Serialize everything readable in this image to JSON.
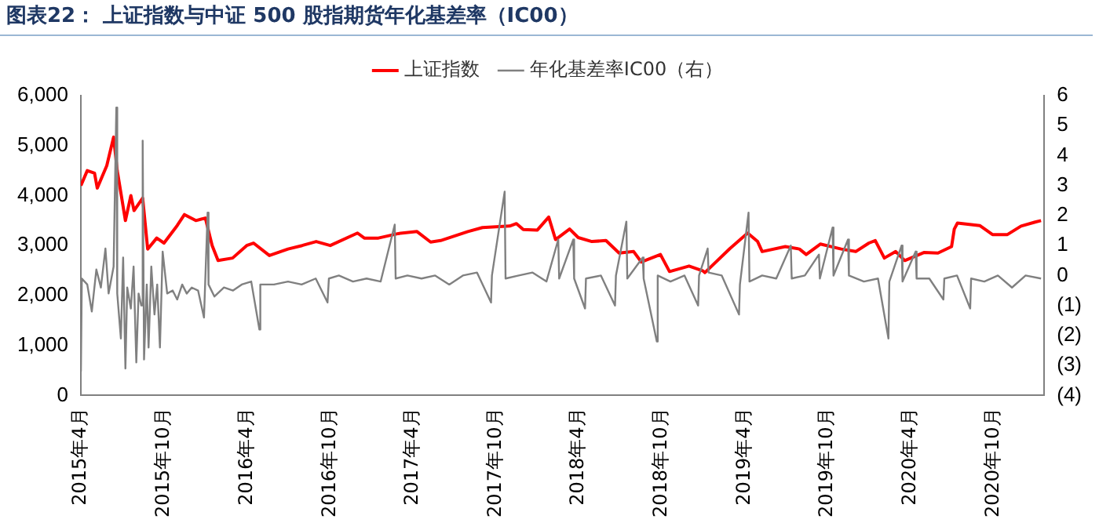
{
  "chart_data": {
    "type": "line",
    "title": "图表22：  上证指数与中证 500 股指期货年化基差率（IC00）",
    "legend": "top",
    "grid": false,
    "marker": "none",
    "xlim": [
      "2015-04-01",
      "2021-01-20"
    ],
    "xticks": [
      {
        "value": "2015-04",
        "label": "2015年4月"
      },
      {
        "value": "2015-10",
        "label": "2015年10月"
      },
      {
        "value": "2016-04",
        "label": "2016年4月"
      },
      {
        "value": "2016-10",
        "label": "2016年10月"
      },
      {
        "value": "2017-04",
        "label": "2017年4月"
      },
      {
        "value": "2017-10",
        "label": "2017年10月"
      },
      {
        "value": "2018-04",
        "label": "2018年4月"
      },
      {
        "value": "2018-10",
        "label": "2018年10月"
      },
      {
        "value": "2019-04",
        "label": "2019年4月"
      },
      {
        "value": "2019-10",
        "label": "2019年10月"
      },
      {
        "value": "2020-04",
        "label": "2020年4月"
      },
      {
        "value": "2020-10",
        "label": "2020年10月"
      }
    ],
    "ylim": [
      0,
      6000
    ],
    "yticks": [
      0,
      {
        "value": 1000,
        "label": "1,000"
      },
      {
        "value": 2000,
        "label": "2,000"
      },
      {
        "value": 3000,
        "label": "3,000"
      },
      {
        "value": 4000,
        "label": "4,000"
      },
      {
        "value": 5000,
        "label": "5,000"
      },
      {
        "value": 6000,
        "label": "6,000"
      }
    ],
    "y2lim": [
      -4,
      6
    ],
    "y2ticks": [
      {
        "value": -4,
        "label": "(4)"
      },
      {
        "value": -3,
        "label": "(3)"
      },
      {
        "value": -2,
        "label": "(2)"
      },
      {
        "value": -1,
        "label": "(1)"
      },
      0,
      1,
      2,
      3,
      4,
      5,
      6
    ],
    "series": [
      {
        "name": "上证指数",
        "color": "#ff0000",
        "x": [
          "2015-04-01",
          "2015-04-15",
          "2015-05-01",
          "2015-05-07",
          "2015-05-28",
          "2015-06-12",
          "2015-06-20",
          "2015-07-08",
          "2015-07-20",
          "2015-07-27",
          "2015-08-15",
          "2015-08-26",
          "2015-09-15",
          "2015-10-01",
          "2015-10-30",
          "2015-11-15",
          "2015-12-10",
          "2015-12-31",
          "2016-01-15",
          "2016-01-28",
          "2016-02-29",
          "2016-03-31",
          "2016-04-15",
          "2016-05-20",
          "2016-06-30",
          "2016-07-31",
          "2016-08-31",
          "2016-10-01",
          "2016-11-30",
          "2016-12-15",
          "2017-01-15",
          "2017-02-28",
          "2017-04-10",
          "2017-05-10",
          "2017-06-01",
          "2017-07-31",
          "2017-09-01",
          "2017-10-31",
          "2017-11-15",
          "2017-11-30",
          "2017-12-31",
          "2018-01-25",
          "2018-02-09",
          "2018-03-12",
          "2018-03-31",
          "2018-04-30",
          "2018-05-31",
          "2018-06-29",
          "2018-07-31",
          "2018-08-17",
          "2018-09-28",
          "2018-10-18",
          "2018-11-30",
          "2018-12-31",
          "2019-01-04",
          "2019-02-28",
          "2019-04-08",
          "2019-04-30",
          "2019-05-10",
          "2019-06-30",
          "2019-07-31",
          "2019-08-15",
          "2019-09-15",
          "2019-10-31",
          "2019-12-02",
          "2019-12-31",
          "2020-01-14",
          "2020-02-03",
          "2020-02-28",
          "2020-03-19",
          "2020-04-30",
          "2020-05-31",
          "2020-06-30",
          "2020-07-06",
          "2020-07-13",
          "2020-08-31",
          "2020-09-28",
          "2020-10-31",
          "2020-11-30",
          "2020-12-31",
          "2021-01-13"
        ],
        "values": [
          4200,
          4500,
          4450,
          4150,
          4600,
          5170,
          4500,
          3500,
          4000,
          3700,
          3950,
          2930,
          3150,
          3050,
          3400,
          3620,
          3500,
          3550,
          3000,
          2700,
          2750,
          3000,
          3050,
          2800,
          2930,
          3000,
          3080,
          3000,
          3250,
          3150,
          3150,
          3240,
          3280,
          3070,
          3100,
          3280,
          3360,
          3390,
          3440,
          3320,
          3310,
          3570,
          3120,
          3330,
          3160,
          3080,
          3100,
          2850,
          2880,
          2670,
          2820,
          2480,
          2590,
          2490,
          2460,
          2940,
          3250,
          3080,
          2880,
          2980,
          2930,
          2820,
          3030,
          2930,
          2880,
          3050,
          3100,
          2750,
          2880,
          2700,
          2860,
          2850,
          2980,
          3330,
          3450,
          3400,
          3220,
          3220,
          3390,
          3470,
          3500
        ]
      },
      {
        "name": "年化基差率IC00（右）",
        "color": "#808080",
        "axis": "y2",
        "x": [
          "2015-04-01",
          "2015-04-03",
          "2015-04-15",
          "2015-04-25",
          "2015-05-05",
          "2015-05-15",
          "2015-05-25",
          "2015-06-01",
          "2015-06-12",
          "2015-06-18",
          "2015-06-20",
          "2015-06-28",
          "2015-07-03",
          "2015-07-08",
          "2015-07-12",
          "2015-07-20",
          "2015-07-26",
          "2015-08-01",
          "2015-08-06",
          "2015-08-12",
          "2015-08-15",
          "2015-08-18",
          "2015-08-24",
          "2015-08-28",
          "2015-09-03",
          "2015-09-10",
          "2015-09-16",
          "2015-09-22",
          "2015-09-28",
          "2015-10-08",
          "2015-10-20",
          "2015-10-30",
          "2015-11-10",
          "2015-11-20",
          "2015-12-01",
          "2015-12-15",
          "2015-12-28",
          "2016-01-05",
          "2016-01-07",
          "2016-01-20",
          "2016-02-10",
          "2016-03-01",
          "2016-03-20",
          "2016-04-10",
          "2016-04-28",
          "2016-04-30",
          "2016-05-30",
          "2016-06-30",
          "2016-07-30",
          "2016-08-30",
          "2016-09-25",
          "2016-09-28",
          "2016-10-20",
          "2016-11-20",
          "2016-12-20",
          "2017-01-20",
          "2017-02-20",
          "2017-02-22",
          "2017-03-20",
          "2017-04-20",
          "2017-05-20",
          "2017-06-20",
          "2017-07-20",
          "2017-08-20",
          "2017-09-20",
          "2017-09-22",
          "2017-10-20",
          "2017-10-22",
          "2017-11-20",
          "2017-12-20",
          "2018-01-20",
          "2018-02-15",
          "2018-02-17",
          "2018-03-20",
          "2018-03-22",
          "2018-04-15",
          "2018-04-17",
          "2018-05-20",
          "2018-06-20",
          "2018-06-22",
          "2018-07-15",
          "2018-07-17",
          "2018-08-20",
          "2018-08-22",
          "2018-09-20",
          "2018-09-22",
          "2018-10-20",
          "2018-11-20",
          "2018-12-20",
          "2018-12-22",
          "2019-01-10",
          "2019-01-12",
          "2019-02-10",
          "2019-03-20",
          "2019-03-22",
          "2019-04-10",
          "2019-04-12",
          "2019-05-10",
          "2019-06-10",
          "2019-07-12",
          "2019-07-14",
          "2019-08-12",
          "2019-09-12",
          "2019-09-14",
          "2019-10-12",
          "2019-10-14",
          "2019-11-15",
          "2019-11-17",
          "2019-12-20",
          "2020-01-20",
          "2020-02-12",
          "2020-02-14",
          "2020-03-12",
          "2020-03-14",
          "2020-04-12",
          "2020-04-14",
          "2020-05-12",
          "2020-06-12",
          "2020-06-14",
          "2020-07-12",
          "2020-08-10",
          "2020-08-12",
          "2020-09-10",
          "2020-10-10",
          "2020-11-10",
          "2020-12-10",
          "2021-01-13"
        ],
        "values": [
          -3.2,
          -0.1,
          -0.3,
          -1.2,
          0.2,
          -0.4,
          0.9,
          -0.6,
          0.3,
          5.6,
          -0.6,
          -2.1,
          0.6,
          -3.1,
          -0.4,
          -1.1,
          0.3,
          -2.9,
          -0.6,
          -1.0,
          4.5,
          -2.8,
          -0.3,
          -2.4,
          0.3,
          -1.3,
          -0.3,
          -2.4,
          0.8,
          -0.6,
          -0.5,
          -0.8,
          -0.3,
          -0.6,
          -0.4,
          -0.5,
          -1.4,
          2.1,
          -0.3,
          -0.7,
          -0.4,
          -0.5,
          -0.3,
          -0.2,
          -1.8,
          -0.3,
          -0.3,
          -0.2,
          -0.3,
          -0.1,
          -0.9,
          -0.1,
          0.0,
          -0.2,
          -0.1,
          -0.2,
          1.7,
          -0.1,
          0.0,
          -0.1,
          0.0,
          -0.3,
          0.0,
          0.1,
          -0.9,
          0.0,
          2.8,
          -0.1,
          0.0,
          0.1,
          -0.2,
          1.2,
          -0.1,
          1.2,
          -0.1,
          -1.1,
          -0.1,
          0.0,
          -1.0,
          0.0,
          1.8,
          -0.1,
          0.6,
          -0.1,
          -2.2,
          0.0,
          -0.2,
          0.0,
          -1.0,
          0.0,
          0.9,
          0.1,
          0.0,
          -1.3,
          -0.3,
          2.1,
          -0.2,
          0.0,
          -0.1,
          1.0,
          -0.1,
          0.0,
          0.7,
          -0.1,
          1.6,
          0.0,
          1.2,
          0.0,
          -0.2,
          -0.1,
          -2.1,
          -0.2,
          1.0,
          -0.2,
          0.8,
          -0.1,
          -0.1,
          -0.8,
          -0.1,
          0.0,
          -1.1,
          -0.1,
          -0.2,
          0.0,
          -0.4,
          0.0,
          -0.1
        ]
      }
    ]
  }
}
